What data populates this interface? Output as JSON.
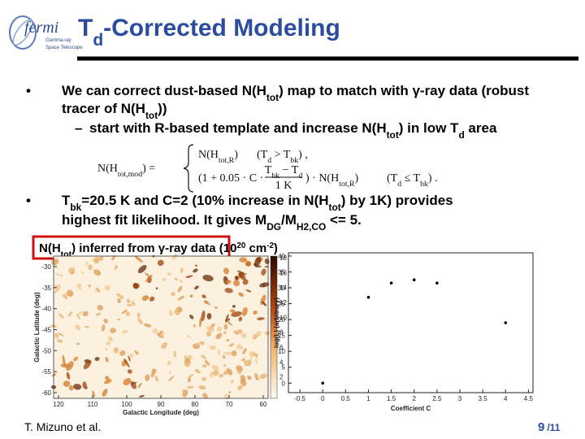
{
  "logo": {
    "name": "fermi",
    "line1": "Gamma-ray",
    "line2": "Space Telescope"
  },
  "title": [
    {
      "text": "T"
    },
    {
      "text": "d",
      "style": "sub"
    },
    {
      "text": "-Corrected Modeling"
    }
  ],
  "bullets": [
    {
      "marker": "•",
      "lines": [
        [
          {
            "text": "We can correct dust-based N(H"
          },
          {
            "text": "tot",
            "style": "sub"
          },
          {
            "text": ") map to match with γ-ray data (robust"
          }
        ],
        [
          {
            "text": "tracer of N(H"
          },
          {
            "text": "tot",
            "style": "sub"
          },
          {
            "text": "))"
          }
        ]
      ]
    },
    {
      "marker": "–",
      "lines": [
        [
          {
            "text": "start with R-based template and increase N(H"
          },
          {
            "text": "tot",
            "style": "sub"
          },
          {
            "text": ") in low T"
          },
          {
            "text": "d",
            "style": "sub"
          },
          {
            "text": " area"
          }
        ]
      ]
    },
    {
      "marker": "•",
      "lines": [
        [
          {
            "text": "T"
          },
          {
            "text": "bk",
            "style": "sub"
          },
          {
            "text": "=20.5 K and C=2 (10% increase in N(H"
          },
          {
            "text": "tot",
            "style": "sub"
          },
          {
            "text": ") by 1K) provides"
          }
        ],
        [
          {
            "text": "highest fit likelihood. It gives M"
          },
          {
            "text": "DG",
            "style": "sub"
          },
          {
            "text": "/M"
          },
          {
            "text": "H2,CO",
            "style": "sub"
          },
          {
            "text": " <= 5."
          }
        ]
      ]
    }
  ],
  "equation": {
    "lhs": [
      {
        "text": "N(H"
      },
      {
        "text": "tot,mod",
        "style": "sub"
      },
      {
        "text": ") ="
      }
    ],
    "case1": [
      {
        "text": "N(H"
      },
      {
        "text": "tot,R",
        "style": "sub"
      },
      {
        "text": ")"
      }
    ],
    "cond1": [
      {
        "text": "(T"
      },
      {
        "text": "d",
        "style": "sub"
      },
      {
        "text": " > T"
      },
      {
        "text": "bk",
        "style": "sub"
      },
      {
        "text": ") ,"
      }
    ],
    "case2_pre": [
      {
        "text": "(1 + 0.05 · C ·"
      }
    ],
    "case2_num": [
      {
        "text": "T"
      },
      {
        "text": "bk",
        "style": "sub"
      },
      {
        "text": " − T"
      },
      {
        "text": "d",
        "style": "sub"
      }
    ],
    "case2_den": [
      {
        "text": "1 K"
      }
    ],
    "case2_post": [
      {
        "text": ") · N(H"
      },
      {
        "text": "tot,R",
        "style": "sub"
      },
      {
        "text": ")"
      }
    ],
    "cond2": [
      {
        "text": "(T"
      },
      {
        "text": "d",
        "style": "sub"
      },
      {
        "text": " ≤ T"
      },
      {
        "text": "bk",
        "style": "sub"
      },
      {
        "text": ") ."
      }
    ]
  },
  "map_caption": [
    {
      "text": "N(H"
    },
    {
      "text": "tot",
      "style": "sub"
    },
    {
      "text": ") inferred from γ-ray data (10"
    },
    {
      "text": "20",
      "style": "super"
    },
    {
      "text": " cm"
    },
    {
      "text": "-2",
      "style": "super"
    },
    {
      "text": ")"
    }
  ],
  "map": {
    "x_label": "Galactic Longitude (deg)",
    "y_label": "Galactic Latitude (deg)",
    "xticks": [
      120,
      110,
      100,
      90,
      80,
      70,
      60
    ],
    "yticks": [
      -30,
      -35,
      -40,
      -45,
      -50,
      -55,
      -60
    ],
    "colorbar_ticks": [
      18,
      16,
      14,
      12,
      10,
      8,
      6,
      4,
      2
    ]
  },
  "chart_data": {
    "type": "scatter",
    "x_label": "Coefficient C",
    "y_label": "log(L) (arbitrary)",
    "x": [
      0,
      1,
      1.5,
      2,
      2.5,
      4
    ],
    "values": [
      0,
      27,
      31.5,
      32.5,
      31.5,
      19
    ],
    "color": "#000000",
    "xlim": [
      -0.75,
      4.6
    ],
    "ylim": [
      -3,
      41
    ],
    "xticks": [
      -0.5,
      0,
      0.5,
      1,
      1.5,
      2,
      2.5,
      3,
      3.5,
      4,
      4.5
    ],
    "yticks": [
      0,
      5,
      10,
      15,
      20,
      25,
      30,
      35,
      40
    ]
  },
  "footer": {
    "author": "T. Mizuno et al.",
    "page": "9",
    "total": "/11"
  }
}
